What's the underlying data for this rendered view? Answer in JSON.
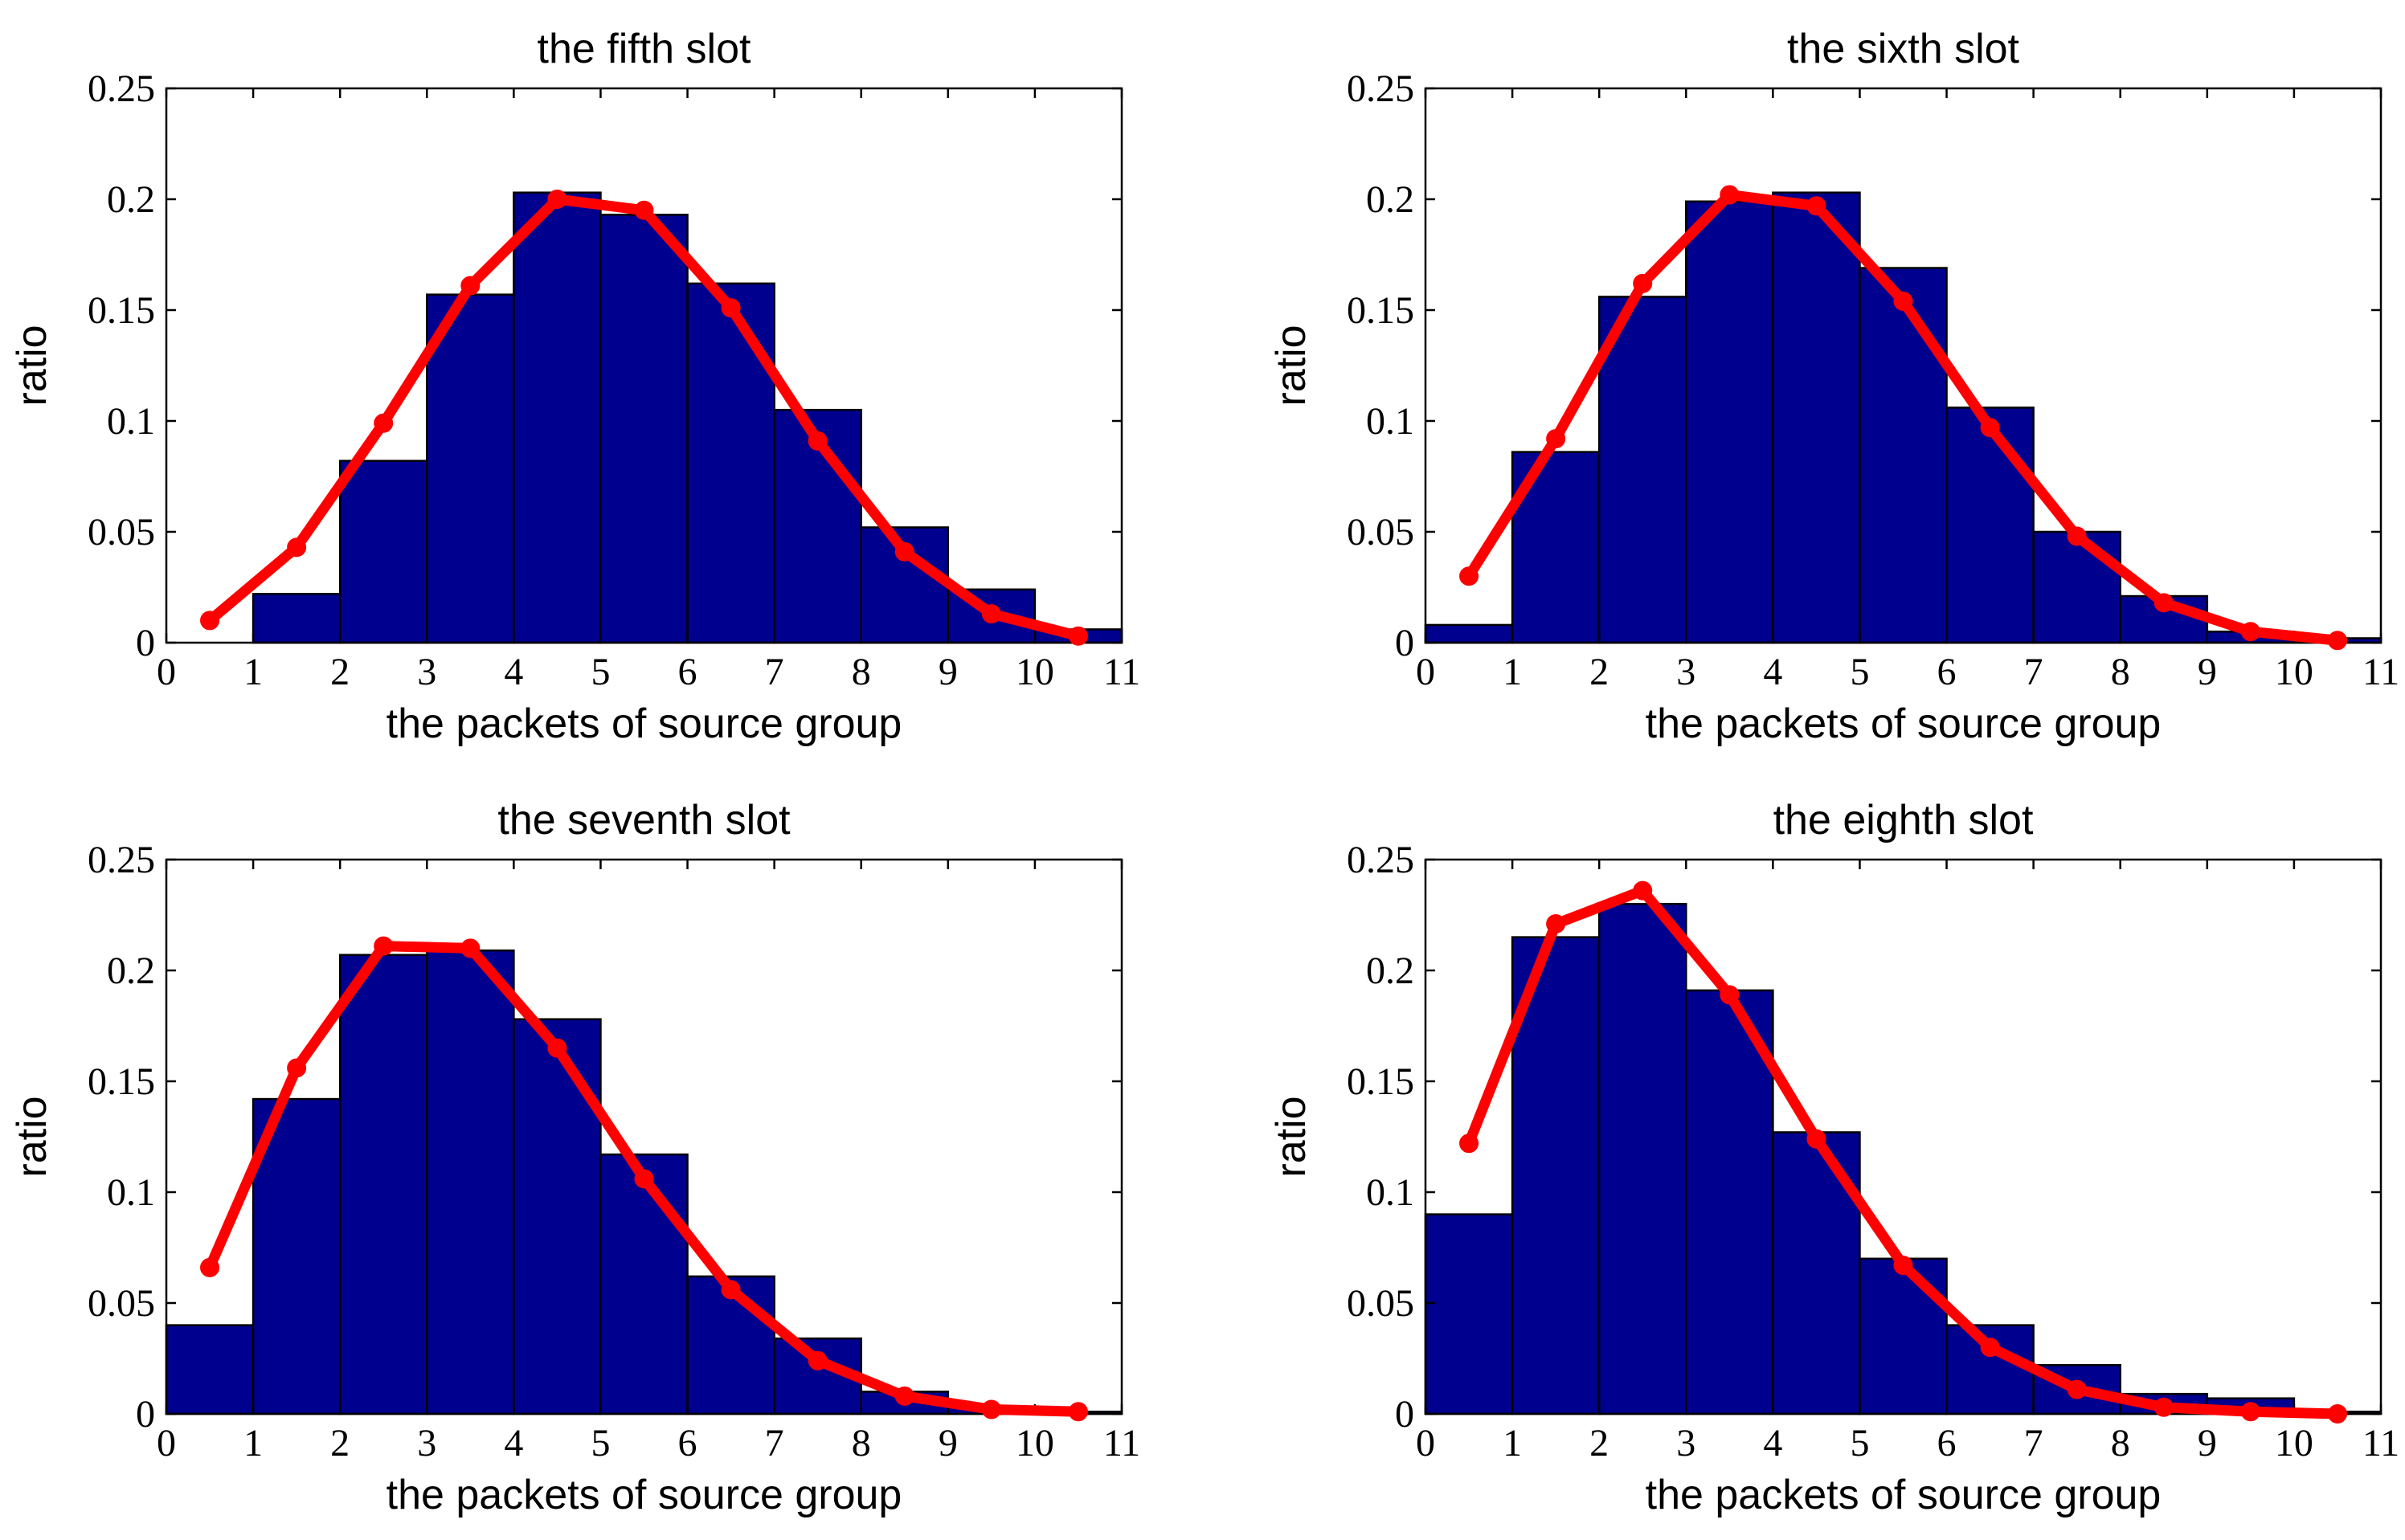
{
  "chart_data": [
    {
      "type": "bar",
      "title": "the fifth slot",
      "xlabel": "the packets of source group",
      "ylabel": "ratio",
      "xlim": [
        0,
        11
      ],
      "ylim": [
        0,
        0.25
      ],
      "xticks": [
        "0",
        "1",
        "2",
        "3",
        "4",
        "5",
        "6",
        "7",
        "8",
        "9",
        "10",
        "11"
      ],
      "yticks": [
        "0",
        "0.05",
        "0.1",
        "0.15",
        "0.2",
        "0.25"
      ],
      "bins": [
        [
          0,
          1
        ],
        [
          1,
          2
        ],
        [
          2,
          3
        ],
        [
          3,
          4
        ],
        [
          4,
          5
        ],
        [
          5,
          6
        ],
        [
          6,
          7
        ],
        [
          7,
          8
        ],
        [
          8,
          9
        ],
        [
          9,
          10
        ],
        [
          10,
          11
        ]
      ],
      "values": [
        0.0,
        0.022,
        0.082,
        0.157,
        0.203,
        0.193,
        0.162,
        0.105,
        0.052,
        0.024,
        0.006
      ],
      "line": {
        "x": [
          0.5,
          1.5,
          2.5,
          3.5,
          4.5,
          5.5,
          6.5,
          7.5,
          8.5,
          9.5,
          10.5
        ],
        "y": [
          0.01,
          0.043,
          0.099,
          0.161,
          0.2,
          0.195,
          0.151,
          0.091,
          0.041,
          0.013,
          0.003
        ],
        "color": "#ff0000"
      },
      "bar_color": "#00008f"
    },
    {
      "type": "bar",
      "title": "the sixth slot",
      "xlabel": "the packets of source group",
      "ylabel": "ratio",
      "xlim": [
        0,
        11
      ],
      "ylim": [
        0,
        0.25
      ],
      "xticks": [
        "0",
        "1",
        "2",
        "3",
        "4",
        "5",
        "6",
        "7",
        "8",
        "9",
        "10",
        "11"
      ],
      "yticks": [
        "0",
        "0.05",
        "0.1",
        "0.15",
        "0.2",
        "0.25"
      ],
      "bins": [
        [
          0,
          1
        ],
        [
          1,
          2
        ],
        [
          2,
          3
        ],
        [
          3,
          4
        ],
        [
          4,
          5
        ],
        [
          5,
          6
        ],
        [
          6,
          7
        ],
        [
          7,
          8
        ],
        [
          8,
          9
        ],
        [
          9,
          10
        ],
        [
          10,
          11
        ]
      ],
      "values": [
        0.008,
        0.086,
        0.156,
        0.199,
        0.203,
        0.169,
        0.106,
        0.05,
        0.021,
        0.005,
        0.002
      ],
      "line": {
        "x": [
          0.5,
          1.5,
          2.5,
          3.5,
          4.5,
          5.5,
          6.5,
          7.5,
          8.5,
          9.5,
          10.5
        ],
        "y": [
          0.03,
          0.092,
          0.162,
          0.202,
          0.197,
          0.154,
          0.097,
          0.048,
          0.018,
          0.005,
          0.001
        ],
        "color": "#ff0000"
      },
      "bar_color": "#00008f"
    },
    {
      "type": "bar",
      "title": "the seventh slot",
      "xlabel": "the packets of source group",
      "ylabel": "ratio",
      "xlim": [
        0,
        11
      ],
      "ylim": [
        0,
        0.25
      ],
      "xticks": [
        "0",
        "1",
        "2",
        "3",
        "4",
        "5",
        "6",
        "7",
        "8",
        "9",
        "10",
        "11"
      ],
      "yticks": [
        "0",
        "0.05",
        "0.1",
        "0.15",
        "0.2",
        "0.25"
      ],
      "bins": [
        [
          0,
          1
        ],
        [
          1,
          2
        ],
        [
          2,
          3
        ],
        [
          3,
          4
        ],
        [
          4,
          5
        ],
        [
          5,
          6
        ],
        [
          6,
          7
        ],
        [
          7,
          8
        ],
        [
          8,
          9
        ],
        [
          9,
          10
        ],
        [
          10,
          11
        ]
      ],
      "values": [
        0.04,
        0.142,
        0.207,
        0.209,
        0.178,
        0.117,
        0.062,
        0.034,
        0.01,
        0.003,
        0.001
      ],
      "line": {
        "x": [
          0.5,
          1.5,
          2.5,
          3.5,
          4.5,
          5.5,
          6.5,
          7.5,
          8.5,
          9.5,
          10.5
        ],
        "y": [
          0.066,
          0.156,
          0.211,
          0.21,
          0.165,
          0.106,
          0.056,
          0.024,
          0.008,
          0.002,
          0.001
        ],
        "color": "#ff0000"
      },
      "bar_color": "#00008f"
    },
    {
      "type": "bar",
      "title": "the eighth slot",
      "xlabel": "the packets of source group",
      "ylabel": "ratio",
      "xlim": [
        0,
        11
      ],
      "ylim": [
        0,
        0.25
      ],
      "xticks": [
        "0",
        "1",
        "2",
        "3",
        "4",
        "5",
        "6",
        "7",
        "8",
        "9",
        "10",
        "11"
      ],
      "yticks": [
        "0",
        "0.05",
        "0.1",
        "0.15",
        "0.2",
        "0.25"
      ],
      "bins": [
        [
          0,
          1
        ],
        [
          1,
          2
        ],
        [
          2,
          3
        ],
        [
          3,
          4
        ],
        [
          4,
          5
        ],
        [
          5,
          6
        ],
        [
          6,
          7
        ],
        [
          7,
          8
        ],
        [
          8,
          9
        ],
        [
          9,
          10
        ],
        [
          10,
          11
        ]
      ],
      "values": [
        0.09,
        0.215,
        0.23,
        0.191,
        0.127,
        0.07,
        0.04,
        0.022,
        0.009,
        0.007,
        0.001
      ],
      "line": {
        "x": [
          0.5,
          1.5,
          2.5,
          3.5,
          4.5,
          5.5,
          6.5,
          7.5,
          8.5,
          9.5,
          10.5
        ],
        "y": [
          0.122,
          0.221,
          0.236,
          0.189,
          0.124,
          0.067,
          0.03,
          0.011,
          0.003,
          0.001,
          0.0
        ],
        "color": "#ff0000"
      },
      "bar_color": "#00008f"
    }
  ]
}
